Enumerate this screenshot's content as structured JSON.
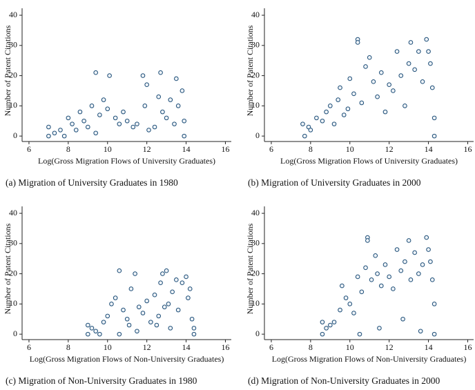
{
  "chart_data": [
    {
      "type": "scatter",
      "caption": "(a)  Migration of University Graduates in 1980",
      "xlabel": "Log(Gross Migration Flows of University Graduates)",
      "ylabel": "Number of Patent Citations",
      "color": "#1a4b75",
      "xlim": [
        5.65,
        16.3
      ],
      "ylim": [
        -1.8,
        42.3
      ],
      "xticks": [
        6,
        8,
        10,
        12,
        14,
        16
      ],
      "yticks": [
        0,
        10,
        20,
        30,
        40
      ],
      "x": [
        7.0,
        7.0,
        7.3,
        7.6,
        7.8,
        8.0,
        8.2,
        8.4,
        8.6,
        8.8,
        9.0,
        9.2,
        9.4,
        9.4,
        9.6,
        9.8,
        10.0,
        10.1,
        10.4,
        10.6,
        10.8,
        11.0,
        11.3,
        11.5,
        11.8,
        11.9,
        12.0,
        12.1,
        12.4,
        12.6,
        12.7,
        12.8,
        13.0,
        13.2,
        13.4,
        13.5,
        13.6,
        13.8,
        13.9,
        13.9
      ],
      "values": [
        3,
        0,
        1,
        2,
        0,
        6,
        4,
        2,
        8,
        5,
        3,
        10,
        21,
        1,
        7,
        12,
        9,
        20,
        6,
        4,
        8,
        5,
        3,
        4,
        20,
        10,
        17,
        2,
        3,
        13,
        21,
        8,
        6,
        12,
        4,
        19,
        10,
        15,
        5,
        0
      ]
    },
    {
      "type": "scatter",
      "caption": "(b)  Migration of University Graduates in 2000",
      "xlabel": "Log(Gross Migration Flows of University Graduates)",
      "ylabel": "Number of Patent Citations",
      "color": "#1a4b75",
      "xlim": [
        5.65,
        16.3
      ],
      "ylim": [
        -1.8,
        42.3
      ],
      "xticks": [
        6,
        8,
        10,
        12,
        14,
        16
      ],
      "yticks": [
        0,
        10,
        20,
        30,
        40
      ],
      "x": [
        7.6,
        7.7,
        7.9,
        8.0,
        8.3,
        8.6,
        8.8,
        9.0,
        9.2,
        9.4,
        9.5,
        9.7,
        9.9,
        10.0,
        10.2,
        10.4,
        10.4,
        10.6,
        10.8,
        11.0,
        11.2,
        11.4,
        11.6,
        11.8,
        12.0,
        12.2,
        12.4,
        12.6,
        12.8,
        13.0,
        13.1,
        13.3,
        13.5,
        13.7,
        13.9,
        14.0,
        14.1,
        14.2,
        14.3,
        14.3
      ],
      "values": [
        4,
        0,
        3,
        2,
        6,
        5,
        8,
        10,
        4,
        12,
        16,
        7,
        9,
        19,
        14,
        32,
        31,
        11,
        23,
        26,
        18,
        13,
        21,
        8,
        17,
        15,
        28,
        20,
        10,
        24,
        31,
        22,
        28,
        18,
        32,
        28,
        24,
        16,
        6,
        0
      ]
    },
    {
      "type": "scatter",
      "caption": "(c)  Migration of Non-University Graduates in 1980",
      "xlabel": "Log(Gross Migration Flows of Non-University Graduates)",
      "ylabel": "Number of Patent Citations",
      "color": "#1a4b75",
      "xlim": [
        5.65,
        16.3
      ],
      "ylim": [
        -1.8,
        42.3
      ],
      "xticks": [
        6,
        8,
        10,
        12,
        14,
        16
      ],
      "yticks": [
        0,
        10,
        20,
        30,
        40
      ],
      "x": [
        9.0,
        9.0,
        9.2,
        9.4,
        9.8,
        10.0,
        10.2,
        10.4,
        10.6,
        10.8,
        11.0,
        11.2,
        11.4,
        11.6,
        11.8,
        12.0,
        12.2,
        12.4,
        12.6,
        12.7,
        12.8,
        13.0,
        13.1,
        13.3,
        13.5,
        13.6,
        13.8,
        14.0,
        14.1,
        14.2,
        14.3,
        14.4,
        10.6,
        11.5,
        12.5,
        13.2,
        14.4,
        9.6,
        12.9,
        11.1
      ],
      "values": [
        3,
        0,
        2,
        1,
        4,
        6,
        10,
        12,
        21,
        8,
        5,
        15,
        20,
        9,
        7,
        11,
        4,
        13,
        6,
        17,
        20,
        21,
        10,
        14,
        18,
        8,
        17,
        19,
        12,
        15,
        5,
        2,
        0,
        1,
        3,
        2,
        0,
        0,
        9,
        3
      ]
    },
    {
      "type": "scatter",
      "caption": "(d)  Migration of Non-University Graduates in 2000",
      "xlabel": "Log(Gross Migration Flows of Non-University Graduates)",
      "ylabel": "Number of Patent Citations",
      "color": "#1a4b75",
      "xlim": [
        5.65,
        16.3
      ],
      "ylim": [
        -1.8,
        42.3
      ],
      "xticks": [
        6,
        8,
        10,
        12,
        14,
        16
      ],
      "yticks": [
        0,
        10,
        20,
        30,
        40
      ],
      "x": [
        8.6,
        8.6,
        8.8,
        9.0,
        9.2,
        9.5,
        9.6,
        9.8,
        10.0,
        10.2,
        10.4,
        10.6,
        10.8,
        10.9,
        10.9,
        11.1,
        11.3,
        11.4,
        11.6,
        11.8,
        12.0,
        12.2,
        12.4,
        12.6,
        12.8,
        13.0,
        13.1,
        13.3,
        13.5,
        13.7,
        13.9,
        14.0,
        14.1,
        14.2,
        14.3,
        14.3,
        10.5,
        11.5,
        12.7,
        13.6
      ],
      "values": [
        4,
        0,
        2,
        3,
        4,
        8,
        16,
        12,
        10,
        7,
        19,
        14,
        22,
        32,
        31,
        18,
        26,
        20,
        16,
        23,
        19,
        15,
        28,
        21,
        24,
        31,
        18,
        27,
        20,
        23,
        32,
        28,
        24,
        18,
        10,
        0,
        0,
        2,
        5,
        1
      ]
    }
  ]
}
